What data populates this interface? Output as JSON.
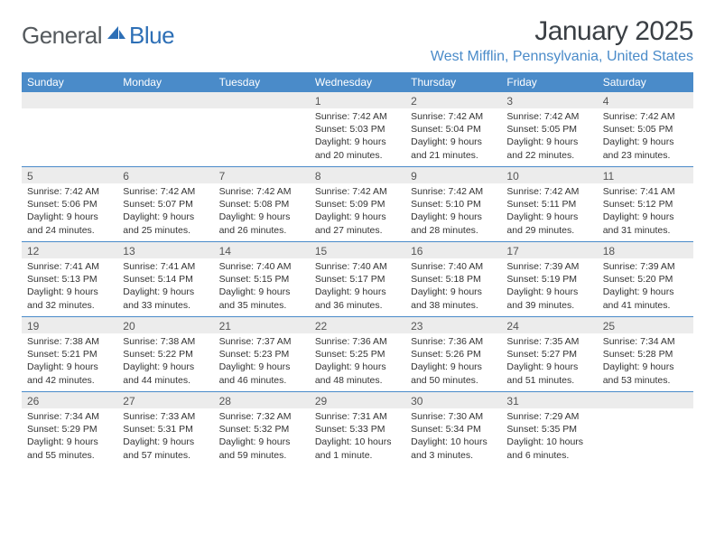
{
  "brand": {
    "name1": "General",
    "name2": "Blue"
  },
  "title": "January 2025",
  "location": "West Mifflin, Pennsylvania, United States",
  "colors": {
    "header_bg": "#4a8bc9",
    "header_text": "#ffffff",
    "daynum_bg": "#ececec",
    "daynum_text": "#555555",
    "body_text": "#333333",
    "title_text": "#3a3f44",
    "location_text": "#4a8bc9",
    "week_divider": "#4a8bc9",
    "logo_gray": "#555a5e",
    "logo_blue": "#2d6fb6",
    "background": "#ffffff"
  },
  "typography": {
    "month_title_fontsize": 30,
    "location_fontsize": 16,
    "dow_fontsize": 12,
    "daynum_fontsize": 12,
    "body_fontsize": 10.5,
    "logo_fontsize": 26
  },
  "dow": [
    "Sunday",
    "Monday",
    "Tuesday",
    "Wednesday",
    "Thursday",
    "Friday",
    "Saturday"
  ],
  "weeks": [
    [
      {
        "n": "",
        "sr": "",
        "ss": "",
        "dl": ""
      },
      {
        "n": "",
        "sr": "",
        "ss": "",
        "dl": ""
      },
      {
        "n": "",
        "sr": "",
        "ss": "",
        "dl": ""
      },
      {
        "n": "1",
        "sr": "Sunrise: 7:42 AM",
        "ss": "Sunset: 5:03 PM",
        "dl": "Daylight: 9 hours and 20 minutes."
      },
      {
        "n": "2",
        "sr": "Sunrise: 7:42 AM",
        "ss": "Sunset: 5:04 PM",
        "dl": "Daylight: 9 hours and 21 minutes."
      },
      {
        "n": "3",
        "sr": "Sunrise: 7:42 AM",
        "ss": "Sunset: 5:05 PM",
        "dl": "Daylight: 9 hours and 22 minutes."
      },
      {
        "n": "4",
        "sr": "Sunrise: 7:42 AM",
        "ss": "Sunset: 5:05 PM",
        "dl": "Daylight: 9 hours and 23 minutes."
      }
    ],
    [
      {
        "n": "5",
        "sr": "Sunrise: 7:42 AM",
        "ss": "Sunset: 5:06 PM",
        "dl": "Daylight: 9 hours and 24 minutes."
      },
      {
        "n": "6",
        "sr": "Sunrise: 7:42 AM",
        "ss": "Sunset: 5:07 PM",
        "dl": "Daylight: 9 hours and 25 minutes."
      },
      {
        "n": "7",
        "sr": "Sunrise: 7:42 AM",
        "ss": "Sunset: 5:08 PM",
        "dl": "Daylight: 9 hours and 26 minutes."
      },
      {
        "n": "8",
        "sr": "Sunrise: 7:42 AM",
        "ss": "Sunset: 5:09 PM",
        "dl": "Daylight: 9 hours and 27 minutes."
      },
      {
        "n": "9",
        "sr": "Sunrise: 7:42 AM",
        "ss": "Sunset: 5:10 PM",
        "dl": "Daylight: 9 hours and 28 minutes."
      },
      {
        "n": "10",
        "sr": "Sunrise: 7:42 AM",
        "ss": "Sunset: 5:11 PM",
        "dl": "Daylight: 9 hours and 29 minutes."
      },
      {
        "n": "11",
        "sr": "Sunrise: 7:41 AM",
        "ss": "Sunset: 5:12 PM",
        "dl": "Daylight: 9 hours and 31 minutes."
      }
    ],
    [
      {
        "n": "12",
        "sr": "Sunrise: 7:41 AM",
        "ss": "Sunset: 5:13 PM",
        "dl": "Daylight: 9 hours and 32 minutes."
      },
      {
        "n": "13",
        "sr": "Sunrise: 7:41 AM",
        "ss": "Sunset: 5:14 PM",
        "dl": "Daylight: 9 hours and 33 minutes."
      },
      {
        "n": "14",
        "sr": "Sunrise: 7:40 AM",
        "ss": "Sunset: 5:15 PM",
        "dl": "Daylight: 9 hours and 35 minutes."
      },
      {
        "n": "15",
        "sr": "Sunrise: 7:40 AM",
        "ss": "Sunset: 5:17 PM",
        "dl": "Daylight: 9 hours and 36 minutes."
      },
      {
        "n": "16",
        "sr": "Sunrise: 7:40 AM",
        "ss": "Sunset: 5:18 PM",
        "dl": "Daylight: 9 hours and 38 minutes."
      },
      {
        "n": "17",
        "sr": "Sunrise: 7:39 AM",
        "ss": "Sunset: 5:19 PM",
        "dl": "Daylight: 9 hours and 39 minutes."
      },
      {
        "n": "18",
        "sr": "Sunrise: 7:39 AM",
        "ss": "Sunset: 5:20 PM",
        "dl": "Daylight: 9 hours and 41 minutes."
      }
    ],
    [
      {
        "n": "19",
        "sr": "Sunrise: 7:38 AM",
        "ss": "Sunset: 5:21 PM",
        "dl": "Daylight: 9 hours and 42 minutes."
      },
      {
        "n": "20",
        "sr": "Sunrise: 7:38 AM",
        "ss": "Sunset: 5:22 PM",
        "dl": "Daylight: 9 hours and 44 minutes."
      },
      {
        "n": "21",
        "sr": "Sunrise: 7:37 AM",
        "ss": "Sunset: 5:23 PM",
        "dl": "Daylight: 9 hours and 46 minutes."
      },
      {
        "n": "22",
        "sr": "Sunrise: 7:36 AM",
        "ss": "Sunset: 5:25 PM",
        "dl": "Daylight: 9 hours and 48 minutes."
      },
      {
        "n": "23",
        "sr": "Sunrise: 7:36 AM",
        "ss": "Sunset: 5:26 PM",
        "dl": "Daylight: 9 hours and 50 minutes."
      },
      {
        "n": "24",
        "sr": "Sunrise: 7:35 AM",
        "ss": "Sunset: 5:27 PM",
        "dl": "Daylight: 9 hours and 51 minutes."
      },
      {
        "n": "25",
        "sr": "Sunrise: 7:34 AM",
        "ss": "Sunset: 5:28 PM",
        "dl": "Daylight: 9 hours and 53 minutes."
      }
    ],
    [
      {
        "n": "26",
        "sr": "Sunrise: 7:34 AM",
        "ss": "Sunset: 5:29 PM",
        "dl": "Daylight: 9 hours and 55 minutes."
      },
      {
        "n": "27",
        "sr": "Sunrise: 7:33 AM",
        "ss": "Sunset: 5:31 PM",
        "dl": "Daylight: 9 hours and 57 minutes."
      },
      {
        "n": "28",
        "sr": "Sunrise: 7:32 AM",
        "ss": "Sunset: 5:32 PM",
        "dl": "Daylight: 9 hours and 59 minutes."
      },
      {
        "n": "29",
        "sr": "Sunrise: 7:31 AM",
        "ss": "Sunset: 5:33 PM",
        "dl": "Daylight: 10 hours and 1 minute."
      },
      {
        "n": "30",
        "sr": "Sunrise: 7:30 AM",
        "ss": "Sunset: 5:34 PM",
        "dl": "Daylight: 10 hours and 3 minutes."
      },
      {
        "n": "31",
        "sr": "Sunrise: 7:29 AM",
        "ss": "Sunset: 5:35 PM",
        "dl": "Daylight: 10 hours and 6 minutes."
      },
      {
        "n": "",
        "sr": "",
        "ss": "",
        "dl": ""
      }
    ]
  ]
}
